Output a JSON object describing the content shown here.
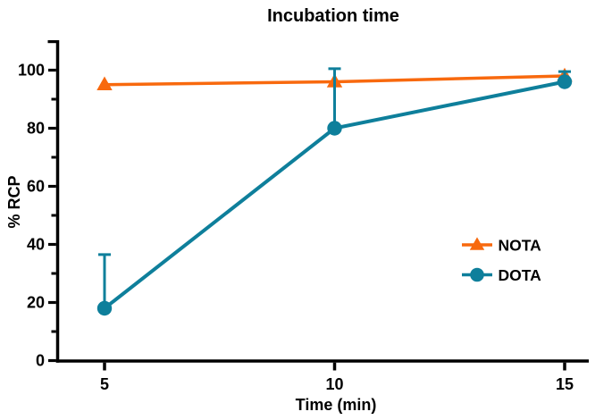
{
  "figure": {
    "background": "#ffffff"
  },
  "chart_data": {
    "type": "line",
    "title": "Incubation time",
    "xlabel": "Time (min)",
    "ylabel": "% RCP",
    "x": [
      5,
      10,
      15
    ],
    "x_tick_labels": [
      "5",
      "10",
      "15"
    ],
    "y_ticks": [
      0,
      20,
      40,
      60,
      80,
      100
    ],
    "y_minor_ticks": [
      10,
      30,
      50,
      70,
      90
    ],
    "ylim": [
      0,
      110
    ],
    "xlim": [
      4,
      15.5
    ],
    "grid": false,
    "error_bars": "upper-only with caps",
    "legend_position": "inside-right-middle",
    "axis_color": "#000000",
    "text_color": "#000000",
    "series": [
      {
        "name": "NOTA",
        "marker": "triangle-up",
        "color": "#F8690E",
        "values": [
          95,
          96,
          98
        ],
        "errors_plus": [
          0,
          0,
          0
        ]
      },
      {
        "name": "DOTA",
        "marker": "circle",
        "color": "#0E7F9B",
        "values": [
          18,
          80,
          96
        ],
        "errors_plus": [
          18.5,
          20.5,
          3.5
        ]
      }
    ]
  }
}
